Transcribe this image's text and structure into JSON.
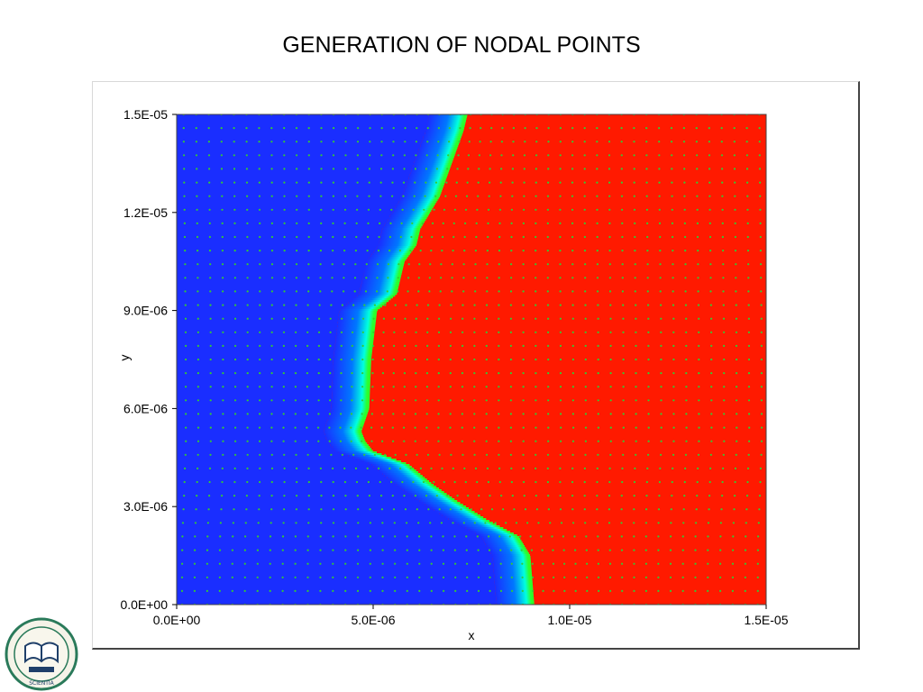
{
  "slide": {
    "title": "GENERATION OF NODAL POINTS"
  },
  "colors": {
    "low": "#1a2eff",
    "mid": "#00ffe0",
    "interface": "#2bff2b",
    "high": "#ff1a00",
    "node": "#33cc33"
  },
  "chart_data": {
    "type": "heatmap",
    "title": "",
    "xlabel": "x",
    "ylabel": "y",
    "xlim": [
      0,
      1.5e-05
    ],
    "ylim": [
      0,
      1.5e-05
    ],
    "x_ticks": [
      "0.0E+00",
      "5.0E-06",
      "1.0E-05",
      "1.5E-05"
    ],
    "x_tick_values": [
      0,
      5e-06,
      1e-05,
      1.5e-05
    ],
    "y_ticks": [
      "0.0E+00",
      "3.0E-06",
      "6.0E-06",
      "9.0E-06",
      "1.2E-05",
      "1.5E-05"
    ],
    "y_tick_values": [
      0,
      3e-06,
      6e-06,
      9e-06,
      1.2e-05,
      1.5e-05
    ],
    "field": {
      "description_low": "blue region",
      "description_high": "red region"
    },
    "interface_curve": {
      "x": [
        9.1e-06,
        9e-06,
        8.7e-06,
        7.9e-06,
        7.1e-06,
        6.5e-06,
        5.9e-06,
        5e-06,
        4.8e-06,
        4.7e-06,
        4.9e-06,
        4.95e-06,
        5.1e-06,
        5.6e-06,
        5.8e-06,
        6.1e-06,
        6.2e-06,
        6.7e-06,
        7e-06,
        7.3e-06,
        7.4e-06
      ],
      "y": [
        0.0,
        1.5e-06,
        2.1e-06,
        2.6e-06,
        3.2e-06,
        3.7e-06,
        4.3e-06,
        4.7e-06,
        5e-06,
        5.3e-06,
        6e-06,
        7.5e-06,
        9e-06,
        9.5e-06,
        1.05e-05,
        1.1e-05,
        1.15e-05,
        1.25e-05,
        1.35e-05,
        1.45e-05,
        1.5e-05
      ]
    },
    "nodes": {
      "columns": 48,
      "rows": 36,
      "spacing_near_interface": "denser"
    }
  },
  "logo": {
    "lettering": "UNIVERZA V NOVI GORICI SCIENTIA 1995 SINCE"
  }
}
